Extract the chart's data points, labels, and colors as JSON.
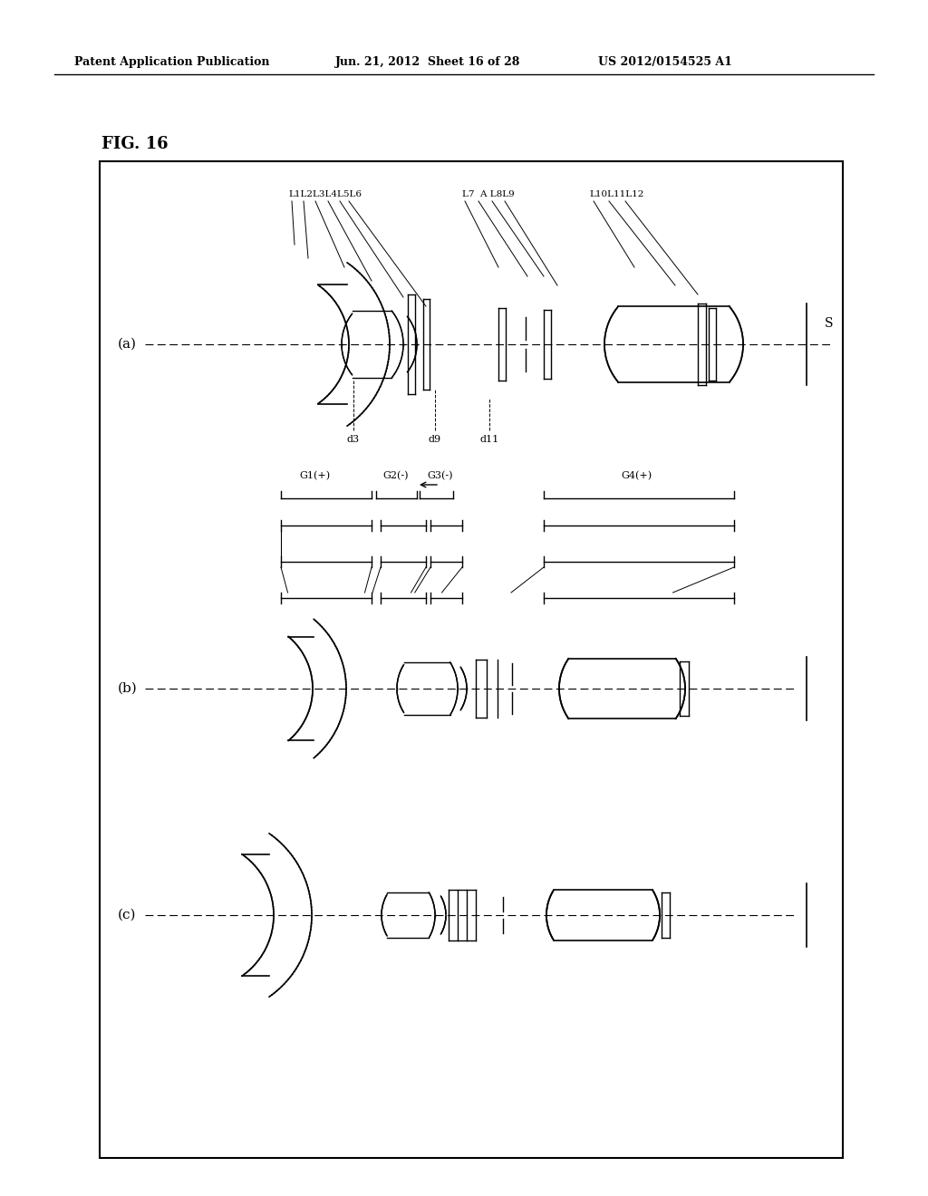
{
  "header_left": "Patent Application Publication",
  "header_mid": "Jun. 21, 2012  Sheet 16 of 28",
  "header_right": "US 2012/0154525 A1",
  "fig_label": "FIG. 16",
  "bg_color": "#ffffff",
  "border_color": "#000000",
  "line_color": "#000000",
  "panel_a_label": "(a)",
  "panel_b_label": "(b)",
  "panel_c_label": "(c)",
  "lens_labels_top": [
    "L1",
    "L2",
    "L3",
    "L4",
    "L5",
    "L6",
    "",
    "L7",
    "A",
    "L8",
    "L9",
    "",
    "L10",
    "L11",
    "L12"
  ],
  "group_labels": [
    "G1(+)",
    "G2(-)",
    "G3(-)",
    "G4(+)"
  ],
  "d_labels": [
    "d3",
    "d9",
    "d11"
  ],
  "sensor_label": "S"
}
